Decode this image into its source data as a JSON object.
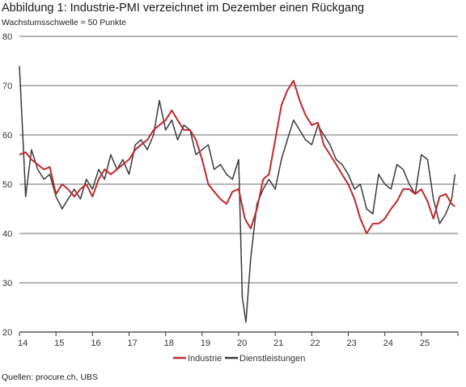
{
  "title": "Abbildung 1: Industrie-PMI verzeichnet im Dezember einen Rückgang",
  "subtitle": "Wachstumsschwelle = 50 Punkte",
  "source": "Quellen: procure.ch, UBS",
  "colors": {
    "industrie": "#c0282d",
    "dienstleistungen": "#3a3a3a",
    "grid": "#6b6b6b",
    "axis": "#333333"
  },
  "chart_data": {
    "type": "line",
    "ylim": [
      20,
      80
    ],
    "y_ticks": [
      20,
      30,
      40,
      50,
      60,
      70,
      80
    ],
    "xlim": [
      2014,
      2026
    ],
    "x_ticks": [
      {
        "label": "14",
        "value": 2014
      },
      {
        "label": "15",
        "value": 2015
      },
      {
        "label": "16",
        "value": 2016
      },
      {
        "label": "17",
        "value": 2017
      },
      {
        "label": "18",
        "value": 2018
      },
      {
        "label": "19",
        "value": 2019
      },
      {
        "label": "20",
        "value": 2020
      },
      {
        "label": "21",
        "value": 2021
      },
      {
        "label": "22",
        "value": 2022
      },
      {
        "label": "23",
        "value": 2023
      },
      {
        "label": "24",
        "value": 2024
      },
      {
        "label": "25",
        "value": 2025
      }
    ],
    "grid": true,
    "legend_position": "bottom",
    "series": [
      {
        "name": "Industrie",
        "color": "#c0282d",
        "points": [
          [
            2014.0,
            56
          ],
          [
            2014.17,
            56.5
          ],
          [
            2014.33,
            55
          ],
          [
            2014.5,
            54
          ],
          [
            2014.67,
            53
          ],
          [
            2014.83,
            53.5
          ],
          [
            2015.0,
            48
          ],
          [
            2015.17,
            50
          ],
          [
            2015.33,
            49
          ],
          [
            2015.5,
            47.5
          ],
          [
            2015.67,
            49
          ],
          [
            2015.83,
            50
          ],
          [
            2016.0,
            47.5
          ],
          [
            2016.17,
            51
          ],
          [
            2016.33,
            53
          ],
          [
            2016.5,
            52
          ],
          [
            2016.67,
            53
          ],
          [
            2016.83,
            54
          ],
          [
            2017.0,
            55
          ],
          [
            2017.17,
            57
          ],
          [
            2017.33,
            58
          ],
          [
            2017.5,
            59
          ],
          [
            2017.67,
            61
          ],
          [
            2017.83,
            62
          ],
          [
            2018.0,
            63
          ],
          [
            2018.17,
            65
          ],
          [
            2018.33,
            63
          ],
          [
            2018.5,
            61
          ],
          [
            2018.67,
            61
          ],
          [
            2018.83,
            59
          ],
          [
            2019.0,
            55
          ],
          [
            2019.17,
            50
          ],
          [
            2019.33,
            48.5
          ],
          [
            2019.5,
            47
          ],
          [
            2019.67,
            46
          ],
          [
            2019.83,
            48.5
          ],
          [
            2020.0,
            49
          ],
          [
            2020.17,
            43
          ],
          [
            2020.33,
            41
          ],
          [
            2020.5,
            45
          ],
          [
            2020.67,
            51
          ],
          [
            2020.83,
            52
          ],
          [
            2021.0,
            59
          ],
          [
            2021.17,
            66
          ],
          [
            2021.33,
            69
          ],
          [
            2021.5,
            71
          ],
          [
            2021.67,
            67
          ],
          [
            2021.83,
            64
          ],
          [
            2022.0,
            62
          ],
          [
            2022.17,
            62.5
          ],
          [
            2022.33,
            58
          ],
          [
            2022.5,
            56
          ],
          [
            2022.67,
            54
          ],
          [
            2022.83,
            52
          ],
          [
            2023.0,
            50
          ],
          [
            2023.17,
            47
          ],
          [
            2023.33,
            43
          ],
          [
            2023.5,
            40
          ],
          [
            2023.67,
            42
          ],
          [
            2023.83,
            42
          ],
          [
            2024.0,
            43
          ],
          [
            2024.17,
            45
          ],
          [
            2024.33,
            46.5
          ],
          [
            2024.5,
            49
          ],
          [
            2024.67,
            49
          ],
          [
            2024.83,
            48
          ],
          [
            2025.0,
            49
          ],
          [
            2025.17,
            46.5
          ],
          [
            2025.33,
            43
          ],
          [
            2025.5,
            47.5
          ],
          [
            2025.67,
            48
          ],
          [
            2025.83,
            46
          ],
          [
            2025.92,
            45.5
          ]
        ]
      },
      {
        "name": "Dienstleistungen",
        "color": "#3a3a3a",
        "points": [
          [
            2014.0,
            74
          ],
          [
            2014.08,
            62
          ],
          [
            2014.17,
            47.5
          ],
          [
            2014.33,
            57
          ],
          [
            2014.5,
            53
          ],
          [
            2014.67,
            51
          ],
          [
            2014.83,
            52
          ],
          [
            2015.0,
            47.5
          ],
          [
            2015.17,
            45
          ],
          [
            2015.33,
            47
          ],
          [
            2015.5,
            49
          ],
          [
            2015.67,
            47
          ],
          [
            2015.83,
            51
          ],
          [
            2016.0,
            49
          ],
          [
            2016.17,
            53
          ],
          [
            2016.33,
            51
          ],
          [
            2016.5,
            56
          ],
          [
            2016.67,
            53
          ],
          [
            2016.83,
            55
          ],
          [
            2017.0,
            52
          ],
          [
            2017.17,
            58
          ],
          [
            2017.33,
            59
          ],
          [
            2017.5,
            57
          ],
          [
            2017.67,
            60
          ],
          [
            2017.83,
            67
          ],
          [
            2018.0,
            61
          ],
          [
            2018.17,
            63
          ],
          [
            2018.33,
            59
          ],
          [
            2018.5,
            62
          ],
          [
            2018.67,
            61
          ],
          [
            2018.83,
            56
          ],
          [
            2019.0,
            57
          ],
          [
            2019.17,
            58
          ],
          [
            2019.33,
            53
          ],
          [
            2019.5,
            54
          ],
          [
            2019.67,
            52
          ],
          [
            2019.83,
            51
          ],
          [
            2020.0,
            55
          ],
          [
            2020.1,
            27
          ],
          [
            2020.2,
            22
          ],
          [
            2020.33,
            35
          ],
          [
            2020.5,
            46
          ],
          [
            2020.67,
            49
          ],
          [
            2020.83,
            51
          ],
          [
            2021.0,
            49
          ],
          [
            2021.17,
            55
          ],
          [
            2021.33,
            59
          ],
          [
            2021.5,
            63
          ],
          [
            2021.67,
            61
          ],
          [
            2021.83,
            59
          ],
          [
            2022.0,
            58
          ],
          [
            2022.17,
            62
          ],
          [
            2022.33,
            60
          ],
          [
            2022.5,
            58
          ],
          [
            2022.67,
            55
          ],
          [
            2022.83,
            54
          ],
          [
            2023.0,
            52
          ],
          [
            2023.17,
            49
          ],
          [
            2023.33,
            50
          ],
          [
            2023.5,
            45
          ],
          [
            2023.67,
            44
          ],
          [
            2023.83,
            52
          ],
          [
            2024.0,
            50
          ],
          [
            2024.17,
            49
          ],
          [
            2024.33,
            54
          ],
          [
            2024.5,
            53
          ],
          [
            2024.67,
            50
          ],
          [
            2024.83,
            48
          ],
          [
            2025.0,
            56
          ],
          [
            2025.17,
            55
          ],
          [
            2025.33,
            47
          ],
          [
            2025.5,
            42
          ],
          [
            2025.67,
            44
          ],
          [
            2025.83,
            47
          ],
          [
            2025.92,
            52
          ]
        ]
      }
    ]
  }
}
